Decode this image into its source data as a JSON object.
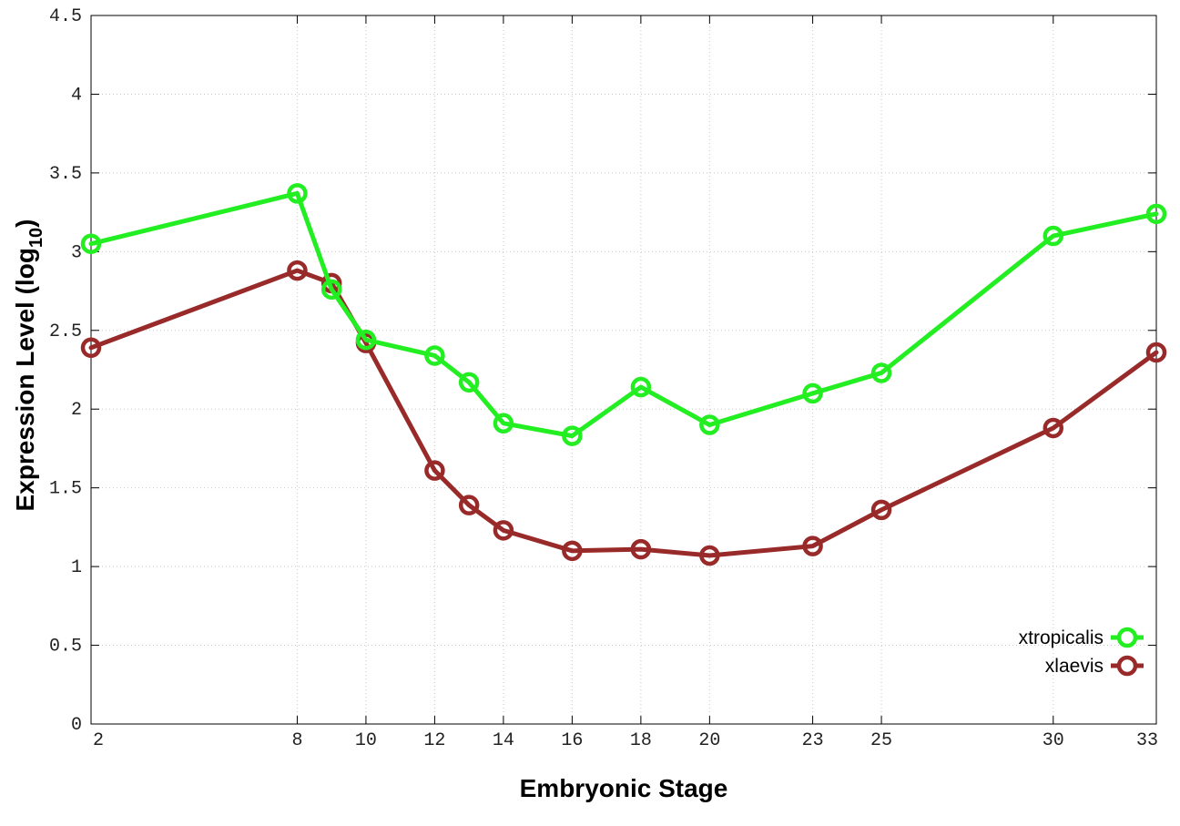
{
  "chart_data": {
    "type": "line",
    "title": "",
    "xlabel": "Embryonic Stage",
    "ylabel_main": "Expression Level (log",
    "ylabel_sub": "10",
    "ylabel_close": ")",
    "xlim": [
      2,
      33
    ],
    "ylim": [
      0,
      4.5
    ],
    "x_ticks": [
      2,
      8,
      10,
      12,
      14,
      16,
      18,
      20,
      23,
      25,
      30,
      33
    ],
    "x_tick_labels": [
      "2",
      "8",
      "10",
      "12",
      "14",
      "16",
      "18",
      "20",
      "23",
      "25",
      "30",
      "33"
    ],
    "y_ticks": [
      0,
      0.5,
      1,
      1.5,
      2,
      2.5,
      3,
      3.5,
      4,
      4.5
    ],
    "y_tick_labels": [
      "0",
      "0.5",
      "1",
      "1.5",
      "2",
      "2.5",
      "3",
      "3.5",
      "4",
      "4.5"
    ],
    "grid": true,
    "legend_position": "bottom-right",
    "series": [
      {
        "name": "xtropicalis",
        "color": "#22ee22",
        "marker": "open-circle",
        "x": [
          2,
          8,
          9,
          10,
          12,
          13,
          14,
          16,
          18,
          20,
          23,
          25,
          30,
          33
        ],
        "y": [
          3.05,
          3.37,
          2.76,
          2.44,
          2.34,
          2.17,
          1.91,
          1.83,
          2.14,
          1.9,
          2.1,
          2.23,
          3.1,
          3.24
        ]
      },
      {
        "name": "xlaevis",
        "color": "#992a2a",
        "marker": "open-circle",
        "x": [
          2,
          8,
          9,
          10,
          12,
          13,
          14,
          16,
          18,
          20,
          23,
          25,
          30,
          33
        ],
        "y": [
          2.39,
          2.88,
          2.8,
          2.42,
          1.61,
          1.39,
          1.23,
          1.1,
          1.11,
          1.07,
          1.13,
          1.36,
          1.88,
          2.36
        ]
      }
    ]
  }
}
